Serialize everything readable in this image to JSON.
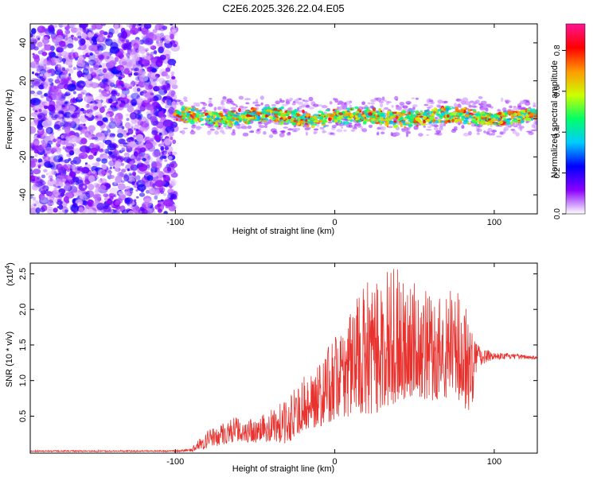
{
  "title": "C2E6.2025.326.22.04.E05",
  "chart_data": [
    {
      "type": "heatmap",
      "title": "C2E6.2025.326.22.04.E05",
      "xlabel": "Height of straight line (km)",
      "ylabel": "Frequency (Hz)",
      "xlim": [
        -191,
        127
      ],
      "ylim": [
        -50,
        50
      ],
      "xticks": [
        -100,
        0,
        100
      ],
      "xtick_labels": [
        "-100",
        "0",
        "100"
      ],
      "yticks": [
        -40,
        -20,
        0,
        20,
        40
      ],
      "ytick_labels": [
        "-40",
        "-20",
        "0",
        "20",
        "40"
      ],
      "colorbar": {
        "label": "Normalized spectral amplitude",
        "range": [
          0,
          0.93
        ],
        "ticks": [
          0,
          0.2,
          0.4,
          0.6,
          0.8
        ],
        "tick_labels": [
          "0.0",
          "0.2",
          "0.4",
          "0.6",
          "0.8"
        ],
        "colors": [
          "#ffffff",
          "#8a00ff",
          "#0000ff",
          "#00ccff",
          "#00ff66",
          "#ccff00",
          "#ff9900",
          "#ff0000",
          "#ff1493"
        ]
      },
      "description_regions": [
        {
          "x_range": [
            -191,
            -100
          ],
          "frequency_range": [
            -50,
            50
          ],
          "amplitude": "low broadband noise (0.05-0.25)"
        },
        {
          "x_range": [
            -100,
            127
          ],
          "center_frequency": 1,
          "band_width": 6,
          "amplitude": "0.4-0.9 narrowband signal"
        }
      ]
    },
    {
      "type": "line",
      "xlabel": "Height of straight line (km)",
      "ylabel": "SNR (10 * v/v)",
      "y_scale_label": "(x10",
      "y_scale_exponent": "4",
      "y_scale_close": ")",
      "xlim": [
        -191,
        127
      ],
      "ylim": [
        -0.02,
        2.65
      ],
      "xticks": [
        -100,
        0,
        100
      ],
      "xtick_labels": [
        "-100",
        "0",
        "100"
      ],
      "yticks": [
        0.5,
        1.0,
        1.5,
        2.0,
        2.5
      ],
      "ytick_labels": [
        "0.5",
        "1.0",
        "1.5",
        "2.0",
        "2.5"
      ],
      "series": [
        {
          "name": "SNR",
          "color": "#e8322e",
          "envelope": {
            "x": [
              -191,
              -100,
              -90,
              -80,
              -70,
              -60,
              -50,
              -40,
              -30,
              -20,
              -10,
              0,
              10,
              20,
              30,
              40,
              50,
              60,
              70,
              80,
              85,
              90,
              100,
              110,
              127
            ],
            "low": [
              0.0,
              0.0,
              0.0,
              0.05,
              0.1,
              0.15,
              0.12,
              0.15,
              0.1,
              0.3,
              0.35,
              0.45,
              0.5,
              0.45,
              0.6,
              0.7,
              0.8,
              0.7,
              0.75,
              0.6,
              0.5,
              1.2,
              1.3,
              1.3,
              1.3
            ],
            "high": [
              0.02,
              0.02,
              0.05,
              0.3,
              0.45,
              0.5,
              0.45,
              0.6,
              0.75,
              1.05,
              1.3,
              1.6,
              2.1,
              2.4,
              2.55,
              2.6,
              2.4,
              2.2,
              2.3,
              2.4,
              2.0,
              1.5,
              1.4,
              1.38,
              1.35
            ]
          }
        }
      ]
    }
  ]
}
